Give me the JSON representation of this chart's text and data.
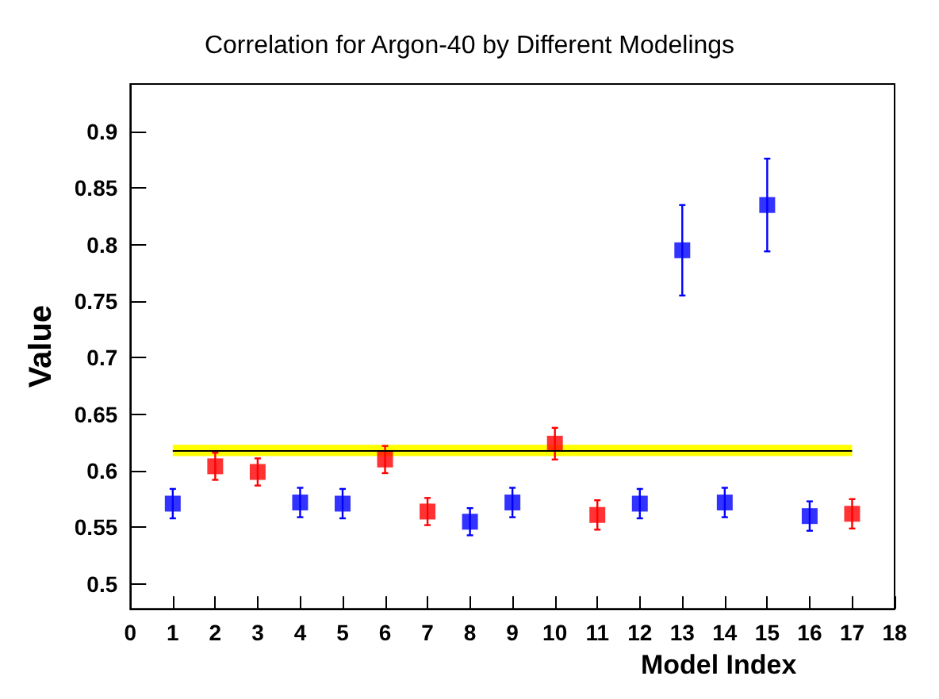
{
  "chart_data": {
    "type": "scatter",
    "title": "Correlation for Argon-40 by Different Modelings",
    "xlabel": "Model Index",
    "ylabel": "Value",
    "xlim": [
      0,
      18
    ],
    "xticks": [
      0,
      1,
      2,
      3,
      4,
      5,
      6,
      7,
      8,
      9,
      10,
      11,
      12,
      13,
      14,
      15,
      16,
      17,
      18
    ],
    "ylim": [
      0.478,
      0.942
    ],
    "yticks": [
      0.5,
      0.55,
      0.6,
      0.65,
      0.7,
      0.75,
      0.8,
      0.85,
      0.9
    ],
    "grid": false,
    "marker": "square",
    "series": [
      {
        "color": "#0000ff",
        "x": [
          1,
          4,
          5,
          8,
          9,
          12,
          13,
          14,
          15,
          16
        ],
        "values": [
          0.571,
          0.572,
          0.571,
          0.555,
          0.572,
          0.571,
          0.795,
          0.572,
          0.835,
          0.56
        ],
        "errors": [
          0.013,
          0.013,
          0.013,
          0.012,
          0.013,
          0.013,
          0.04,
          0.013,
          0.041,
          0.013
        ]
      },
      {
        "color": "#ff0000",
        "x": [
          2,
          3,
          6,
          7,
          10,
          11,
          17
        ],
        "values": [
          0.604,
          0.599,
          0.61,
          0.564,
          0.624,
          0.561,
          0.562
        ],
        "errors": [
          0.012,
          0.012,
          0.012,
          0.012,
          0.014,
          0.013,
          0.013
        ]
      }
    ],
    "bands": [
      {
        "axis": "y",
        "from": 0.613,
        "to": 0.623,
        "color": "#ffff00"
      }
    ],
    "ref_lines": [
      {
        "axis": "y",
        "value": 0.618,
        "color": "#000000",
        "line_style": "solid"
      }
    ]
  }
}
